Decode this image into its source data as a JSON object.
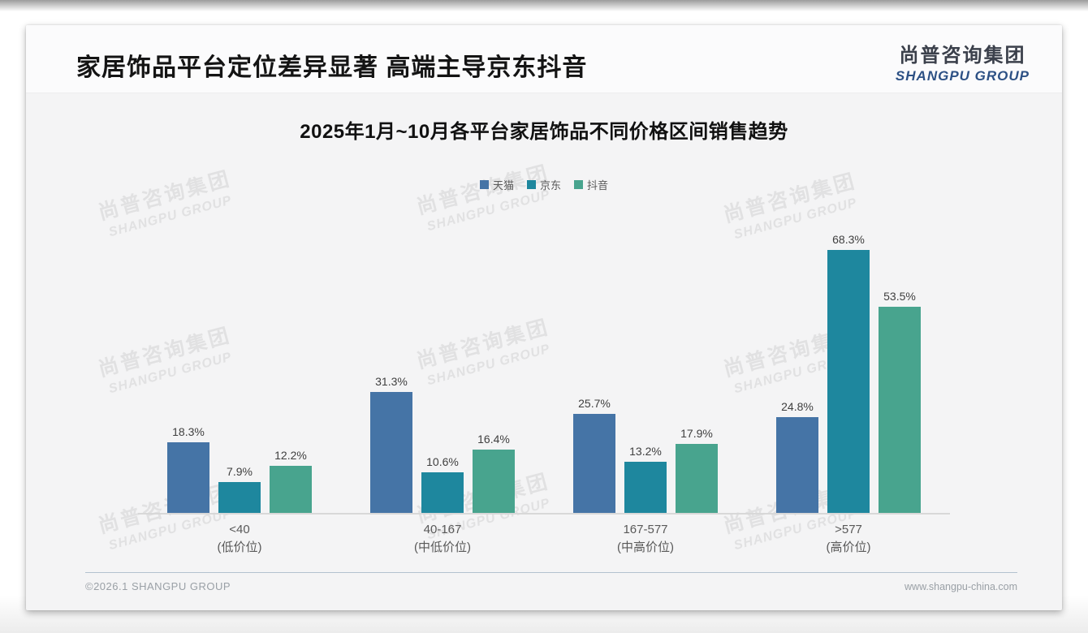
{
  "slide": {
    "title": "家居饰品平台定位差异显著 高端主导京东抖音",
    "logo": {
      "cn": "尚普咨询集团",
      "en": "SHANGPU GROUP"
    },
    "watermark": {
      "cn": "尚普咨询集团",
      "en": "SHANGPU GROUP"
    },
    "footer": {
      "left": "©2026.1 SHANGPU GROUP",
      "right": "www.shangpu-china.com"
    }
  },
  "chart_data": {
    "type": "bar",
    "title": "2025年1月~10月各平台家居饰品不同价格区间销售趋势",
    "categories": [
      {
        "range": "<40",
        "tier": "(低价位)"
      },
      {
        "range": "40-167",
        "tier": "(中低价位)"
      },
      {
        "range": "167-577",
        "tier": "(中高价位)"
      },
      {
        "range": ">577",
        "tier": "(高价位)"
      }
    ],
    "series": [
      {
        "name": "天猫",
        "color": "#4574a6",
        "values": [
          18.3,
          31.3,
          25.7,
          24.8
        ]
      },
      {
        "name": "京东",
        "color": "#1e879e",
        "values": [
          7.9,
          10.6,
          13.2,
          68.3
        ]
      },
      {
        "name": "抖音",
        "color": "#48a48e",
        "values": [
          12.2,
          16.4,
          17.9,
          53.5
        ]
      }
    ],
    "value_suffix": "%",
    "xlabel": "",
    "ylabel": "",
    "ylim": [
      0,
      73.7
    ],
    "grid": false,
    "legend_position": "top",
    "value_labels": true
  }
}
